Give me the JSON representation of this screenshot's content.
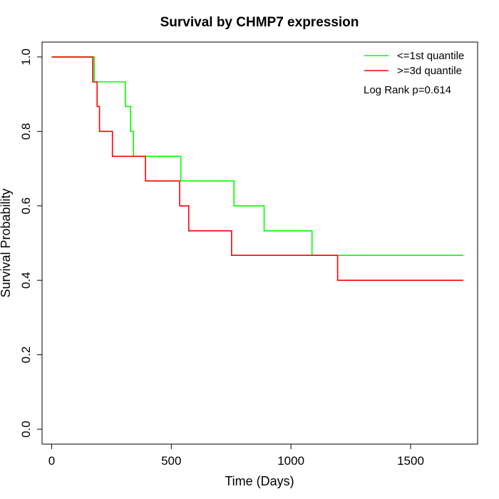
{
  "chart_data": {
    "type": "line",
    "title": "Survival by CHMP7 expression",
    "xlabel": "Time (Days)",
    "ylabel": "Survival Probability",
    "xlim": [
      -40,
      1780
    ],
    "ylim": [
      -0.04,
      1.04
    ],
    "x_ticks": [
      0,
      500,
      1000,
      1500
    ],
    "x_tick_labels": [
      "0",
      "500",
      "1000",
      "1500"
    ],
    "y_ticks": [
      0.0,
      0.2,
      0.4,
      0.6,
      0.8,
      1.0
    ],
    "y_tick_labels": [
      "0.0",
      "0.2",
      "0.4",
      "0.6",
      "0.8",
      "1.0"
    ],
    "grid": false,
    "legend_position": "top-right",
    "annotation": "Log Rank p=0.614",
    "series": [
      {
        "name": "<=1st quantile",
        "color": "#00ff00",
        "step": true,
        "x": [
          0,
          178,
          308,
          330,
          342,
          540,
          762,
          888,
          1088,
          1720
        ],
        "y": [
          1.0,
          0.933,
          0.867,
          0.8,
          0.733,
          0.667,
          0.6,
          0.533,
          0.467,
          0.467
        ]
      },
      {
        "name": ">=3d quantile",
        "color": "#ff0000",
        "step": true,
        "x": [
          0,
          172,
          190,
          200,
          254,
          392,
          535,
          573,
          752,
          1195,
          1720
        ],
        "y": [
          1.0,
          0.933,
          0.867,
          0.8,
          0.733,
          0.667,
          0.6,
          0.533,
          0.467,
          0.4,
          0.4
        ]
      }
    ]
  }
}
